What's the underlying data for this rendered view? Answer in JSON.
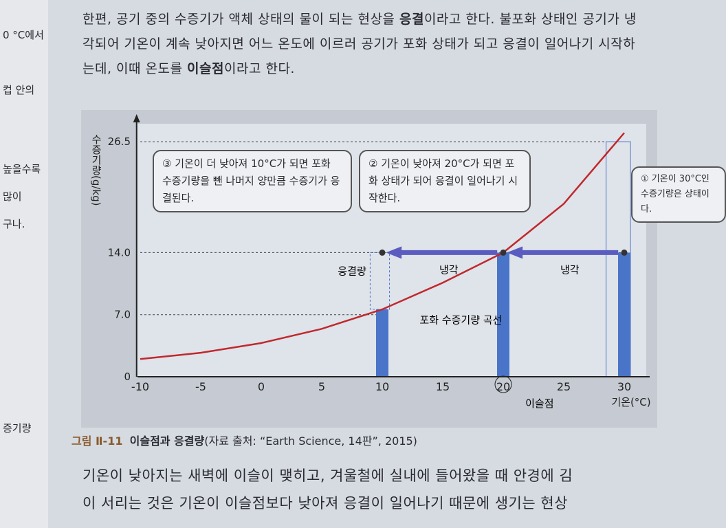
{
  "paragraph1": {
    "parts": [
      "한편, 공기 중의 수증기가 액체 상태의 물이 되는 현상을 ",
      "응결",
      "이라고 한다. 불포화 상태인 공기가 냉각되어 기온이 계속 낮아지면 어느 온도에 이르러 공기가 포화 상태가 되고 응결이 일어나기 시작하는데, 이때 온도를 ",
      "이슬점",
      "이라고 한다."
    ]
  },
  "left_margin": [
    "0 °C에서",
    "컵 안의",
    "높을수록",
    "많이",
    "구나.",
    "증기량"
  ],
  "bubbles": {
    "b3": "③ 기온이 더 낮아져 10°C가 되면 포화 수증기량을 뺀 나머지 양만큼 수증기가 응결된다.",
    "b2": "② 기온이 낮아져 20°C가 되면 포화 상태가 되어 응결이 일어나기 시작한다.",
    "b1": "① 기온이 30°C인 수증기량은 상태이다."
  },
  "chart_data": {
    "type": "line",
    "title": "이슬점과 응결량",
    "xlabel": "기온(°C)",
    "ylabel": "수증기량(g/kg)",
    "xlim": [
      -10,
      30
    ],
    "ylim": [
      0,
      28
    ],
    "x_ticks": [
      "-10",
      "-5",
      "0",
      "5",
      "10",
      "15",
      "20",
      "25",
      "30"
    ],
    "y_ticks": [
      "0",
      "7.0",
      "14.0",
      "26.5"
    ],
    "series": [
      {
        "name": "포화 수증기량 곡선",
        "x": [
          -10,
          -5,
          0,
          5,
          10,
          15,
          20,
          25,
          30
        ],
        "y": [
          2.0,
          2.7,
          3.8,
          5.4,
          7.6,
          10.6,
          14.0,
          19.5,
          27.5
        ]
      }
    ],
    "bars": [
      {
        "x": 10,
        "y": 7.6
      },
      {
        "x": 20,
        "y": 14.0
      },
      {
        "x": 30,
        "y": 14.0
      }
    ],
    "points": [
      {
        "x": 30,
        "y": 14.0
      },
      {
        "x": 20,
        "y": 14.0
      },
      {
        "x": 10,
        "y": 14.0
      }
    ],
    "annotations": {
      "cool1": "냉각",
      "cool2": "냉각",
      "condensed": "응결량",
      "curve_label": "포화 수증기량 곡선",
      "dew_point": "이슬점",
      "dew_point_value": "20"
    },
    "colors": {
      "curve": "#c0282c",
      "bar": "#4a74c8",
      "arrow": "#5a5cc0"
    }
  },
  "caption": {
    "number": "그림 Ⅱ-11",
    "title": "이슬점과 응결량",
    "source": "(자료 출처: “Earth Science, 14판”, 2015)"
  },
  "paragraph2": {
    "line1": "기온이 낮아지는 새벽에 이슬이 맺히고, 겨울철에 실내에 들어왔을 때 안경에 김",
    "line2": "이 서리는 것은 기온이 이슬점보다 낮아져 응결이 일어나기 때문에 생기는 현상"
  }
}
